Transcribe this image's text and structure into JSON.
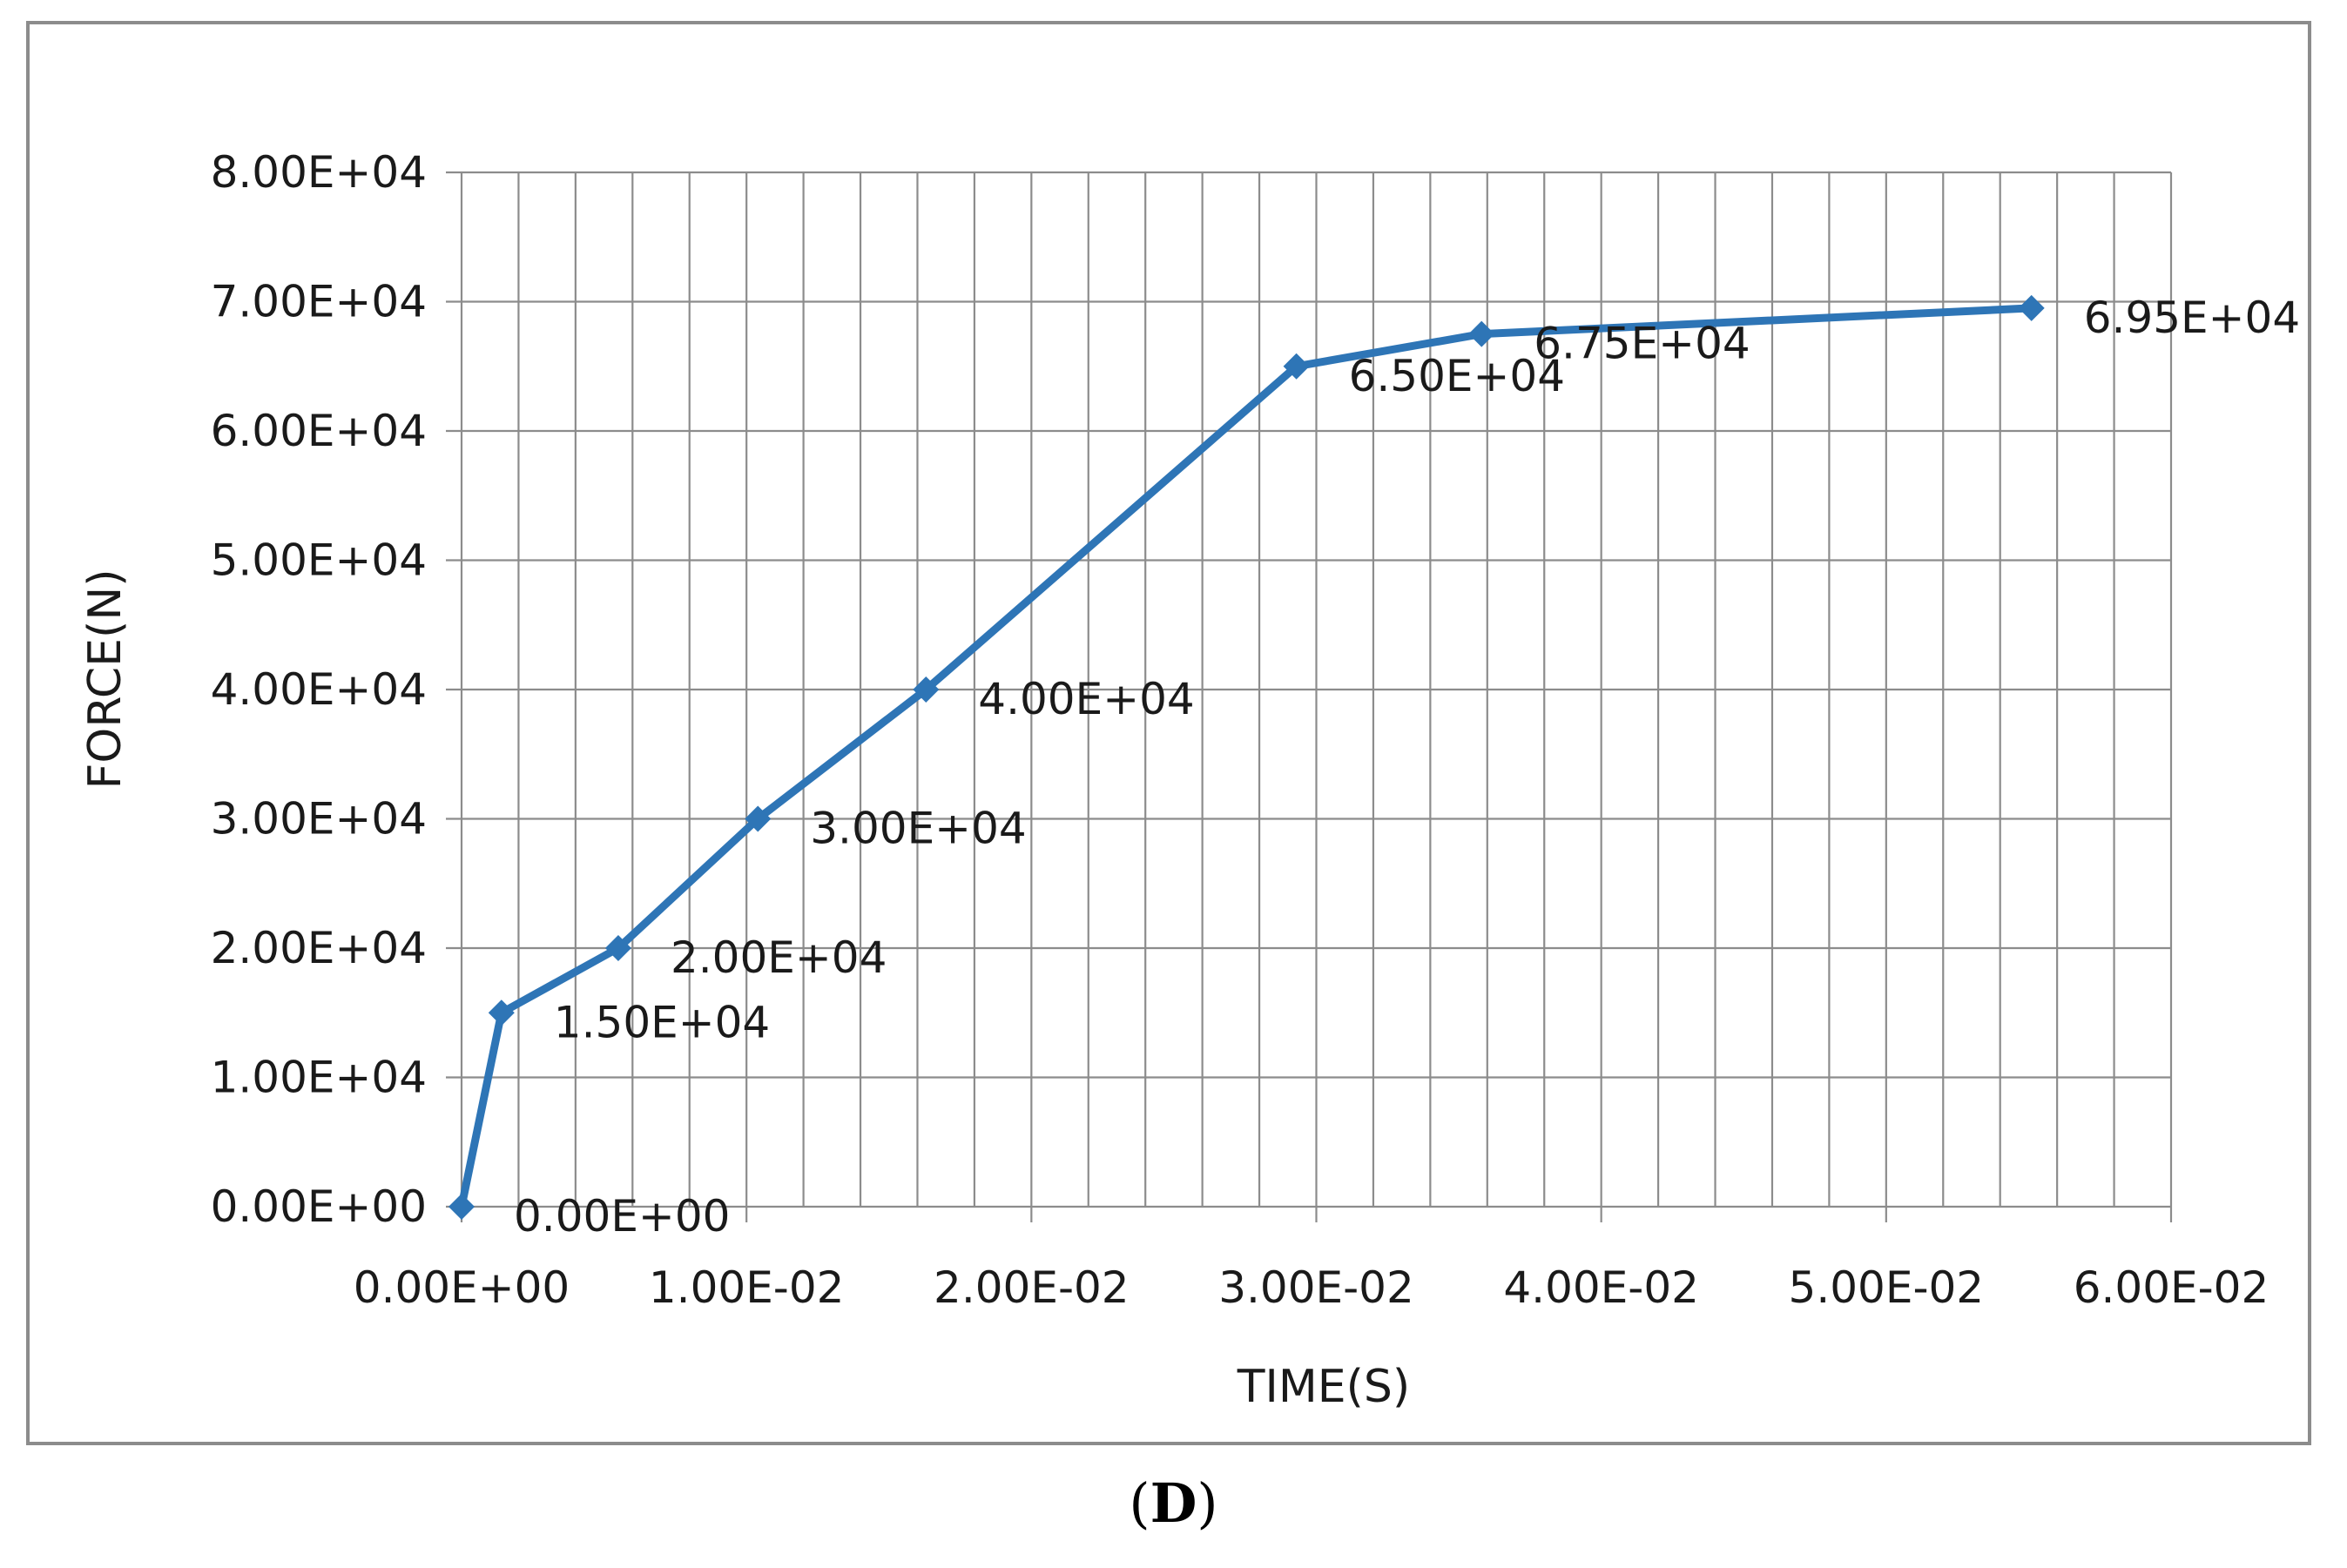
{
  "chart_data": {
    "type": "line",
    "xlabel": "TIME(S)",
    "ylabel": "FORCE(N)",
    "xlim": [
      0,
      0.06
    ],
    "ylim": [
      0,
      80000
    ],
    "x_ticks": [
      {
        "value": 0,
        "label": "0.00E+00"
      },
      {
        "value": 0.01,
        "label": "1.00E-02"
      },
      {
        "value": 0.02,
        "label": "2.00E-02"
      },
      {
        "value": 0.03,
        "label": "3.00E-02"
      },
      {
        "value": 0.04,
        "label": "4.00E-02"
      },
      {
        "value": 0.05,
        "label": "5.00E-02"
      },
      {
        "value": 0.06,
        "label": "6.00E-02"
      }
    ],
    "y_ticks": [
      {
        "value": 0,
        "label": "0.00E+00"
      },
      {
        "value": 10000,
        "label": "1.00E+04"
      },
      {
        "value": 20000,
        "label": "2.00E+04"
      },
      {
        "value": 30000,
        "label": "3.00E+04"
      },
      {
        "value": 40000,
        "label": "4.00E+04"
      },
      {
        "value": 50000,
        "label": "5.00E+04"
      },
      {
        "value": 60000,
        "label": "6.00E+04"
      },
      {
        "value": 70000,
        "label": "7.00E+04"
      },
      {
        "value": 80000,
        "label": "8.00E+04"
      }
    ],
    "grid": true,
    "x_minor_step": 0.002,
    "y_minor_step": 10000,
    "series": [
      {
        "name": "FORCE",
        "color": "#2e75b6",
        "points": [
          {
            "x": 0.0,
            "y": 0,
            "label": "0.00E+00"
          },
          {
            "x": 0.0014,
            "y": 15000,
            "label": "1.50E+04"
          },
          {
            "x": 0.0055,
            "y": 20000,
            "label": "2.00E+04"
          },
          {
            "x": 0.0104,
            "y": 30000,
            "label": "3.00E+04"
          },
          {
            "x": 0.0163,
            "y": 40000,
            "label": "4.00E+04"
          },
          {
            "x": 0.0293,
            "y": 65000,
            "label": "6.50E+04"
          },
          {
            "x": 0.0358,
            "y": 67500,
            "label": "6.75E+04"
          },
          {
            "x": 0.0551,
            "y": 69500,
            "label": "6.95E+04"
          }
        ]
      }
    ]
  },
  "caption": {
    "open": "(",
    "letter": "D",
    "close": ")"
  },
  "colors": {
    "frame": "#8c8c8c",
    "grid": "#8c8c8c",
    "text": "#1a1a1a",
    "series": "#2e75b6"
  }
}
